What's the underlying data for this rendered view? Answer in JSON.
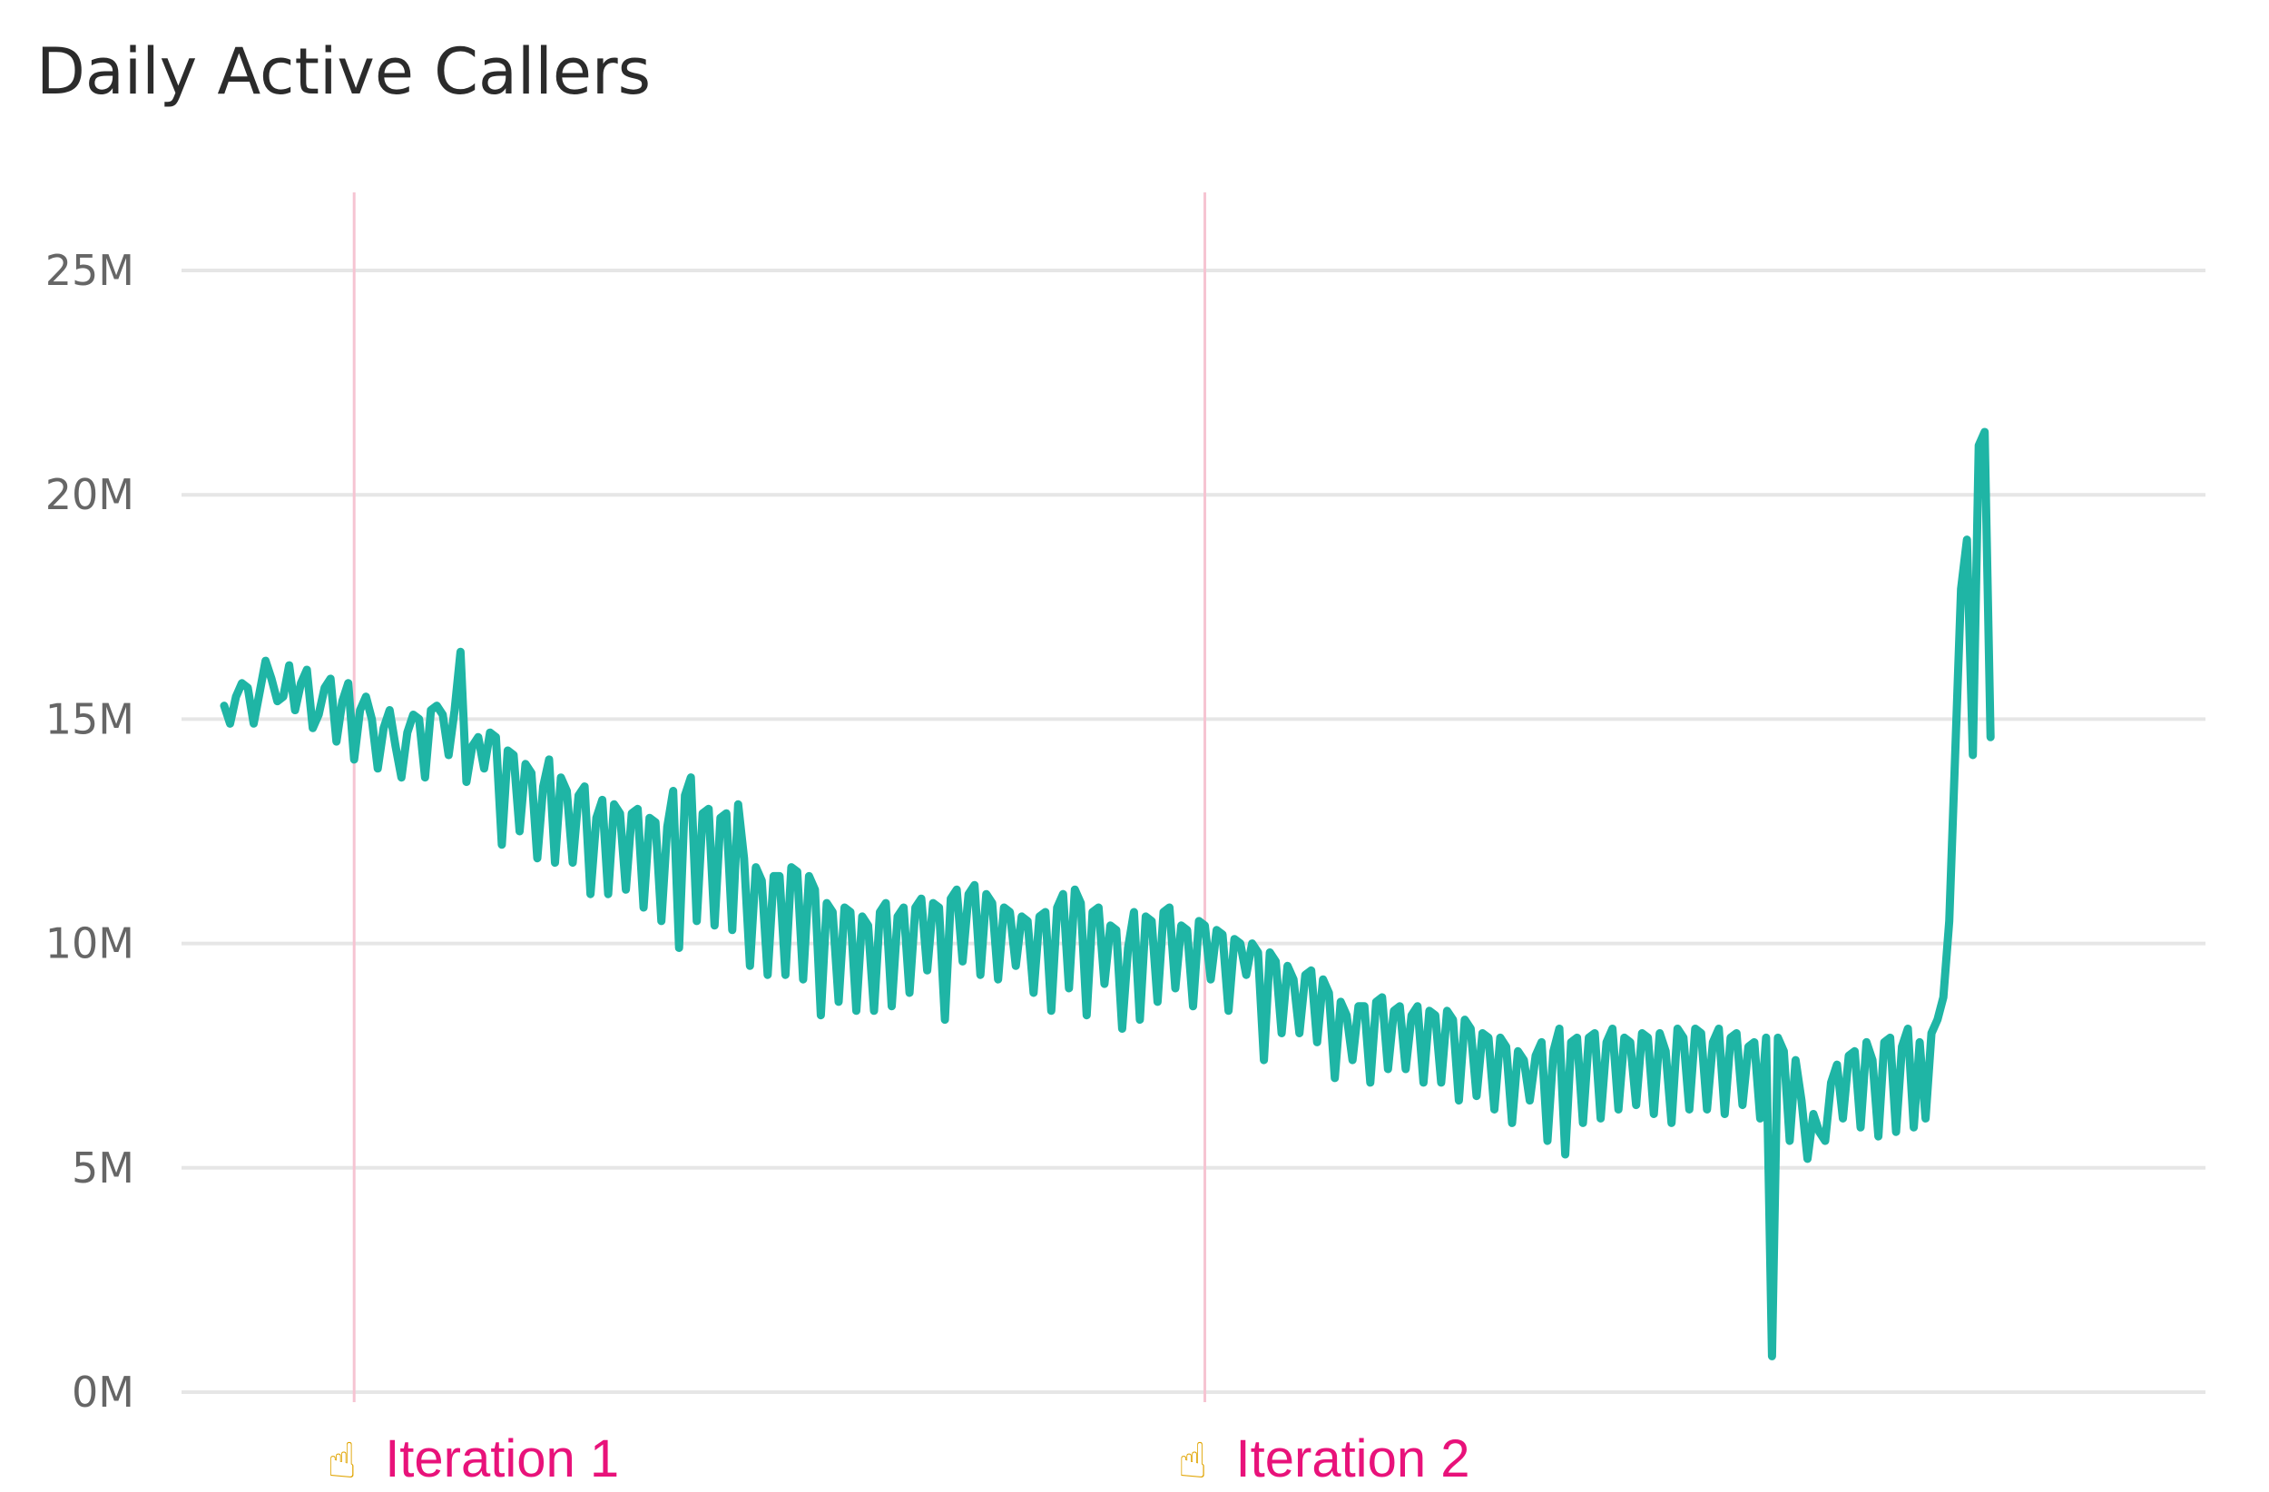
{
  "chart_data": {
    "type": "line",
    "title": "Daily Active Callers",
    "xlabel": "",
    "ylabel": "",
    "ylim": [
      0,
      26000000
    ],
    "yticks": [
      {
        "value": 0,
        "label": "0M"
      },
      {
        "value": 5000000,
        "label": "5M"
      },
      {
        "value": 10000000,
        "label": "10M"
      },
      {
        "value": 15000000,
        "label": "15M"
      },
      {
        "value": 20000000,
        "label": "20M"
      },
      {
        "value": 25000000,
        "label": "25M"
      }
    ],
    "x_domain": [
      0,
      328
    ],
    "grid": true,
    "colors": {
      "line": "#1fb5a5",
      "annotation": "#e8127a",
      "annotation_line": "#f6c4d2",
      "grid": "#e6e6e6",
      "tick": "#666666"
    },
    "annotations": [
      {
        "x": 22,
        "text": "Iteration 1",
        "icon": "pointing-up-hand-icon",
        "glyph": "☝"
      },
      {
        "x": 166,
        "text": "Iteration 2",
        "icon": "pointing-up-hand-icon",
        "glyph": "☝"
      }
    ],
    "series": [
      {
        "values": [
          15.3,
          14.9,
          15.5,
          15.8,
          15.7,
          14.9,
          15.6,
          16.3,
          15.9,
          15.4,
          15.5,
          16.2,
          15.2,
          15.8,
          16.1,
          14.8,
          15.1,
          15.7,
          15.9,
          14.5,
          15.4,
          15.8,
          14.1,
          15.2,
          15.5,
          15.0,
          13.9,
          14.8,
          15.2,
          14.4,
          13.7,
          14.7,
          15.1,
          15.0,
          13.7,
          15.2,
          15.3,
          15.1,
          14.2,
          15.2,
          16.5,
          13.6,
          14.4,
          14.6,
          13.9,
          14.7,
          14.6,
          12.2,
          14.3,
          14.2,
          12.5,
          14.0,
          13.8,
          11.9,
          13.5,
          14.1,
          11.8,
          13.7,
          13.4,
          11.8,
          13.3,
          13.5,
          11.1,
          12.8,
          13.2,
          11.1,
          13.1,
          12.9,
          11.2,
          12.9,
          13.0,
          10.8,
          12.8,
          12.7,
          10.5,
          12.6,
          13.4,
          9.9,
          13.3,
          13.7,
          10.5,
          12.9,
          13.0,
          10.4,
          12.8,
          12.9,
          10.3,
          13.1,
          11.9,
          9.5,
          11.7,
          11.4,
          9.3,
          11.5,
          11.5,
          9.3,
          11.7,
          11.6,
          9.2,
          11.5,
          11.2,
          8.4,
          10.9,
          10.7,
          8.7,
          10.8,
          10.7,
          8.5,
          10.6,
          10.4,
          8.5,
          10.7,
          10.9,
          8.6,
          10.6,
          10.8,
          8.9,
          10.8,
          11.0,
          9.4,
          10.9,
          10.8,
          8.3,
          11.0,
          11.2,
          9.6,
          11.1,
          11.3,
          9.3,
          11.1,
          10.9,
          9.2,
          10.8,
          10.7,
          9.5,
          10.6,
          10.5,
          8.9,
          10.6,
          10.7,
          8.5,
          10.8,
          11.1,
          9.0,
          11.2,
          10.9,
          8.4,
          10.7,
          10.8,
          9.1,
          10.4,
          10.3,
          8.1,
          9.9,
          10.7,
          8.3,
          10.6,
          10.5,
          8.7,
          10.7,
          10.8,
          9.0,
          10.4,
          10.3,
          8.6,
          10.5,
          10.4,
          9.2,
          10.3,
          10.2,
          8.5,
          10.1,
          10.0,
          9.3,
          10.0,
          9.8,
          7.4,
          9.8,
          9.6,
          8.0,
          9.5,
          9.2,
          8.0,
          9.3,
          9.4,
          7.8,
          9.2,
          8.9,
          7.0,
          8.7,
          8.4,
          7.4,
          8.6,
          8.6,
          6.9,
          8.7,
          8.8,
          7.2,
          8.5,
          8.6,
          7.2,
          8.4,
          8.6,
          6.9,
          8.5,
          8.4,
          6.9,
          8.5,
          8.3,
          6.5,
          8.3,
          8.1,
          6.6,
          8.0,
          7.9,
          6.3,
          7.9,
          7.7,
          6.0,
          7.6,
          7.4,
          6.5,
          7.5,
          7.8,
          5.6,
          7.6,
          8.1,
          5.3,
          7.8,
          7.9,
          6.0,
          7.9,
          8.0,
          6.1,
          7.8,
          8.1,
          6.3,
          7.9,
          7.8,
          6.4,
          8.0,
          7.9,
          6.2,
          8.0,
          7.6,
          6.0,
          8.1,
          7.9,
          6.3,
          8.1,
          8.0,
          6.3,
          7.8,
          8.1,
          6.2,
          7.9,
          8.0,
          6.4,
          7.7,
          7.8,
          6.1,
          7.9,
          0.8,
          7.9,
          7.6,
          5.6,
          7.4,
          6.5,
          5.2,
          6.2,
          5.8,
          5.6,
          6.9,
          7.3,
          6.1,
          7.5,
          7.6,
          5.9,
          7.8,
          7.4,
          5.7,
          7.8,
          7.9,
          5.8,
          7.7,
          8.1,
          5.9,
          7.8,
          6.1,
          8.0,
          8.3,
          8.8,
          10.5,
          14.2,
          17.9,
          19.0,
          14.2,
          21.1,
          21.4,
          14.6
        ]
      }
    ]
  }
}
